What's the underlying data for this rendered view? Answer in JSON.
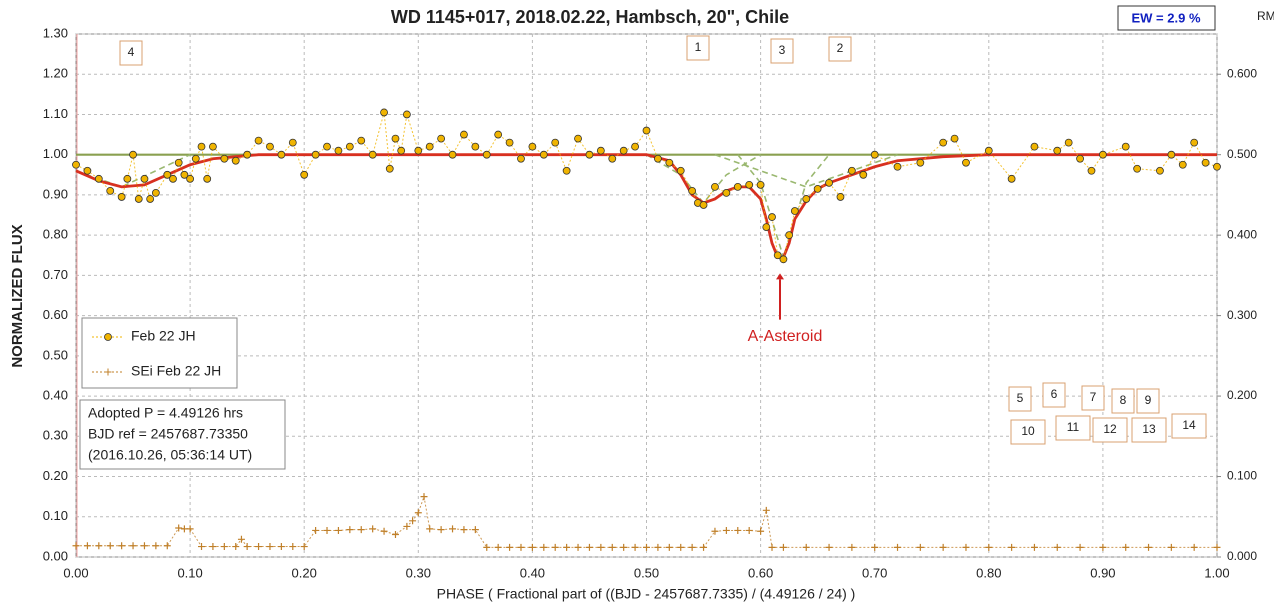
{
  "chart_data": {
    "type": "scatter",
    "title": "WD 1145+017, 2018.02.22,  Hambsch, 20\", Chile",
    "ew_label": "EW =  2.9 %",
    "y2label": "RMS i",
    "xlabel": "PHASE  ( Fractional part of ((BJD - 2457687.7335)  / (4.49126  / 24) )",
    "ylabel": "NORMALIZED  FLUX",
    "xlim": [
      0,
      1
    ],
    "xticks": [
      {
        "value": 0,
        "label": "0.00"
      },
      {
        "value": 0.1,
        "label": "0.10"
      },
      {
        "value": 0.2,
        "label": "0.20"
      },
      {
        "value": 0.3,
        "label": "0.30"
      },
      {
        "value": 0.4,
        "label": "0.40"
      },
      {
        "value": 0.5,
        "label": "0.50"
      },
      {
        "value": 0.6,
        "label": "0.60"
      },
      {
        "value": 0.7,
        "label": "0.70"
      },
      {
        "value": 0.8,
        "label": "0.80"
      },
      {
        "value": 0.9,
        "label": "0.90"
      },
      {
        "value": 1,
        "label": "1.00"
      }
    ],
    "ylim": [
      0,
      1.3
    ],
    "yticks": [
      {
        "value": 0,
        "label": "0.00"
      },
      {
        "value": 0.1,
        "label": "0.10"
      },
      {
        "value": 0.2,
        "label": "0.20"
      },
      {
        "value": 0.3,
        "label": "0.30"
      },
      {
        "value": 0.4,
        "label": "0.40"
      },
      {
        "value": 0.5,
        "label": "0.50"
      },
      {
        "value": 0.6,
        "label": "0.60"
      },
      {
        "value": 0.7,
        "label": "0.70"
      },
      {
        "value": 0.8,
        "label": "0.80"
      },
      {
        "value": 0.9,
        "label": "0.90"
      },
      {
        "value": 1,
        "label": "1.00"
      },
      {
        "value": 1.1,
        "label": "1.10"
      },
      {
        "value": 1.2,
        "label": "1.20"
      },
      {
        "value": 1.3,
        "label": "1.30"
      }
    ],
    "y2lim": [
      0,
      0.65
    ],
    "y2ticks": [
      {
        "value": 0,
        "label": "0.000"
      },
      {
        "value": 0.1,
        "label": "0.100"
      },
      {
        "value": 0.2,
        "label": "0.200"
      },
      {
        "value": 0.3,
        "label": "0.300"
      },
      {
        "value": 0.4,
        "label": "0.400"
      },
      {
        "value": 0.5,
        "label": "0.500"
      },
      {
        "value": 0.6,
        "label": "0.600"
      }
    ],
    "grid": true,
    "series": [
      {
        "name": "Feb 22 JH",
        "color": "#f0b400",
        "x": [
          0,
          0.01,
          0.02,
          0.03,
          0.04,
          0.045,
          0.05,
          0.055,
          0.06,
          0.065,
          0.07,
          0.08,
          0.085,
          0.09,
          0.095,
          0.1,
          0.105,
          0.11,
          0.115,
          0.12,
          0.13,
          0.14,
          0.15,
          0.16,
          0.17,
          0.18,
          0.19,
          0.2,
          0.21,
          0.22,
          0.23,
          0.24,
          0.25,
          0.26,
          0.27,
          0.275,
          0.28,
          0.285,
          0.29,
          0.3,
          0.31,
          0.32,
          0.33,
          0.34,
          0.35,
          0.36,
          0.37,
          0.38,
          0.39,
          0.4,
          0.41,
          0.42,
          0.43,
          0.44,
          0.45,
          0.46,
          0.47,
          0.48,
          0.49,
          0.5,
          0.51,
          0.52,
          0.53,
          0.54,
          0.545,
          0.55,
          0.56,
          0.57,
          0.58,
          0.59,
          0.6,
          0.605,
          0.61,
          0.615,
          0.62,
          0.625,
          0.63,
          0.64,
          0.65,
          0.66,
          0.67,
          0.68,
          0.69,
          0.7,
          0.72,
          0.74,
          0.76,
          0.77,
          0.78,
          0.8,
          0.82,
          0.84,
          0.86,
          0.87,
          0.88,
          0.89,
          0.9,
          0.92,
          0.93,
          0.95,
          0.96,
          0.97,
          0.98,
          0.99,
          1
        ],
        "values": [
          0.975,
          0.96,
          0.94,
          0.91,
          0.895,
          0.94,
          1,
          0.89,
          0.94,
          0.89,
          0.905,
          0.95,
          0.94,
          0.98,
          0.95,
          0.94,
          0.99,
          1.02,
          0.94,
          1.02,
          0.99,
          0.985,
          1,
          1.035,
          1.02,
          1,
          1.03,
          0.95,
          1,
          1.02,
          1.01,
          1.02,
          1.035,
          1,
          1.105,
          0.965,
          1.04,
          1.01,
          1.1,
          1.01,
          1.02,
          1.04,
          1,
          1.05,
          1.02,
          1,
          1.05,
          1.03,
          0.99,
          1.02,
          1,
          1.03,
          0.96,
          1.04,
          1,
          1.01,
          0.99,
          1.01,
          1.02,
          1.06,
          0.99,
          0.98,
          0.96,
          0.91,
          0.88,
          0.875,
          0.92,
          0.905,
          0.92,
          0.925,
          0.925,
          0.82,
          0.845,
          0.75,
          0.74,
          0.8,
          0.86,
          0.89,
          0.915,
          0.93,
          0.895,
          0.96,
          0.95,
          1,
          0.97,
          0.98,
          1.03,
          1.04,
          0.98,
          1.01,
          0.94,
          1.02,
          1.01,
          1.03,
          0.99,
          0.96,
          1,
          1.02,
          0.965,
          0.96,
          1,
          0.975,
          1.03,
          0.98,
          0.97
        ]
      },
      {
        "name": "SEi Feb 22 JH",
        "color": "#c0802a",
        "axis": "y2",
        "x": [
          0,
          0.01,
          0.02,
          0.03,
          0.04,
          0.05,
          0.06,
          0.07,
          0.08,
          0.09,
          0.095,
          0.1,
          0.11,
          0.12,
          0.13,
          0.14,
          0.145,
          0.15,
          0.16,
          0.17,
          0.18,
          0.19,
          0.2,
          0.21,
          0.22,
          0.23,
          0.24,
          0.25,
          0.26,
          0.27,
          0.28,
          0.29,
          0.295,
          0.3,
          0.305,
          0.31,
          0.32,
          0.33,
          0.34,
          0.35,
          0.36,
          0.37,
          0.38,
          0.39,
          0.4,
          0.41,
          0.42,
          0.43,
          0.44,
          0.45,
          0.46,
          0.47,
          0.48,
          0.49,
          0.5,
          0.51,
          0.52,
          0.53,
          0.54,
          0.55,
          0.56,
          0.57,
          0.58,
          0.59,
          0.6,
          0.605,
          0.61,
          0.62,
          0.64,
          0.66,
          0.68,
          0.7,
          0.72,
          0.74,
          0.76,
          0.78,
          0.8,
          0.82,
          0.84,
          0.86,
          0.88,
          0.9,
          0.92,
          0.94,
          0.96,
          0.98,
          1
        ],
        "values": [
          0.014,
          0.014,
          0.014,
          0.014,
          0.014,
          0.014,
          0.014,
          0.014,
          0.014,
          0.036,
          0.035,
          0.035,
          0.013,
          0.013,
          0.013,
          0.013,
          0.022,
          0.013,
          0.013,
          0.013,
          0.013,
          0.013,
          0.013,
          0.033,
          0.033,
          0.033,
          0.034,
          0.034,
          0.035,
          0.032,
          0.028,
          0.038,
          0.045,
          0.055,
          0.075,
          0.035,
          0.034,
          0.035,
          0.034,
          0.034,
          0.012,
          0.012,
          0.012,
          0.012,
          0.012,
          0.012,
          0.012,
          0.012,
          0.012,
          0.012,
          0.012,
          0.012,
          0.012,
          0.012,
          0.012,
          0.012,
          0.012,
          0.012,
          0.012,
          0.012,
          0.032,
          0.033,
          0.033,
          0.033,
          0.032,
          0.058,
          0.012,
          0.012,
          0.012,
          0.012,
          0.012,
          0.012,
          0.012,
          0.012,
          0.012,
          0.012,
          0.012,
          0.012,
          0.012,
          0.012,
          0.012,
          0.012,
          0.012,
          0.012,
          0.012,
          0.012,
          0.012
        ]
      }
    ],
    "fits": [
      {
        "color": "#8aa050",
        "dashed": false,
        "x": [
          0,
          1
        ],
        "values": [
          1,
          1
        ]
      },
      {
        "color": "#9ab870",
        "dashed": true,
        "x": [
          0,
          0.04,
          0.1
        ],
        "values": [
          0.96,
          0.92,
          1
        ]
      },
      {
        "color": "#9ab870",
        "dashed": true,
        "x": [
          0.5,
          0.53,
          0.55,
          0.57,
          0.6
        ],
        "values": [
          1,
          0.95,
          0.88,
          0.95,
          1
        ]
      },
      {
        "color": "#9ab870",
        "dashed": true,
        "x": [
          0.58,
          0.6,
          0.62,
          0.64,
          0.66
        ],
        "values": [
          1,
          0.93,
          0.745,
          0.93,
          1
        ]
      },
      {
        "color": "#9ab870",
        "dashed": true,
        "x": [
          0.56,
          0.6,
          0.64,
          0.68,
          0.72
        ],
        "values": [
          1,
          0.96,
          0.92,
          0.96,
          1
        ]
      },
      {
        "color": "#d83020",
        "dashed": false,
        "x": [
          0,
          0.02,
          0.04,
          0.06,
          0.08,
          0.1,
          0.12,
          0.14,
          0.16,
          0.2,
          0.3,
          0.4,
          0.48,
          0.5,
          0.52,
          0.53,
          0.54,
          0.55,
          0.56,
          0.57,
          0.58,
          0.59,
          0.6,
          0.605,
          0.61,
          0.615,
          0.62,
          0.625,
          0.63,
          0.64,
          0.65,
          0.66,
          0.68,
          0.7,
          0.72,
          0.76,
          0.8,
          1
        ],
        "values": [
          0.96,
          0.935,
          0.92,
          0.925,
          0.95,
          0.975,
          0.99,
          0.995,
          1,
          1,
          1,
          1,
          1,
          1,
          0.985,
          0.95,
          0.9,
          0.88,
          0.89,
          0.91,
          0.92,
          0.92,
          0.89,
          0.84,
          0.78,
          0.745,
          0.745,
          0.78,
          0.84,
          0.885,
          0.915,
          0.93,
          0.95,
          0.97,
          0.985,
          0.995,
          1,
          1
        ]
      }
    ],
    "info": [
      "Adopted P = 4.49126 hrs",
      "BJD ref = 2457687.73350",
      "(2016.10.26, 05:36:14 UT)"
    ],
    "annotation": "A-Asteroid",
    "labels": [
      "4",
      "1",
      "3",
      "2",
      "5",
      "6",
      "7",
      "8",
      "9",
      "10",
      "11",
      "12",
      "13",
      "14"
    ]
  }
}
